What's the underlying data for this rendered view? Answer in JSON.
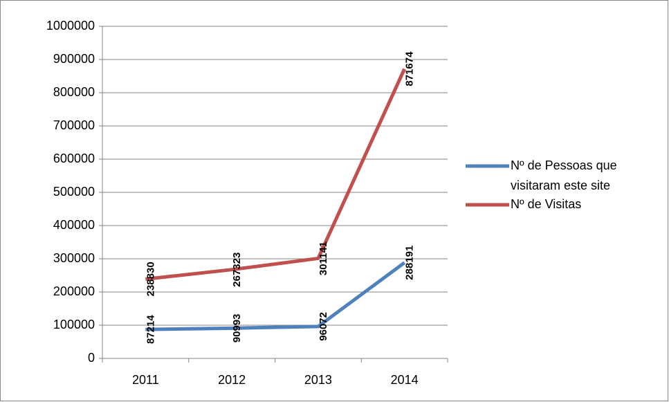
{
  "chart_data": {
    "type": "line",
    "categories": [
      "2011",
      "2012",
      "2013",
      "2014"
    ],
    "series": [
      {
        "name": "Nº de Pessoas que visitaram este site",
        "color": "#4f81bd",
        "values": [
          87214,
          90993,
          96072,
          288191
        ]
      },
      {
        "name": "Nº de Visitas",
        "color": "#c0504d",
        "values": [
          238830,
          267323,
          301141,
          871674
        ]
      }
    ],
    "ylim": [
      0,
      1000000
    ],
    "yticks": [
      0,
      100000,
      200000,
      300000,
      400000,
      500000,
      600000,
      700000,
      800000,
      900000,
      1000000
    ],
    "grid": true,
    "legend": "right"
  }
}
